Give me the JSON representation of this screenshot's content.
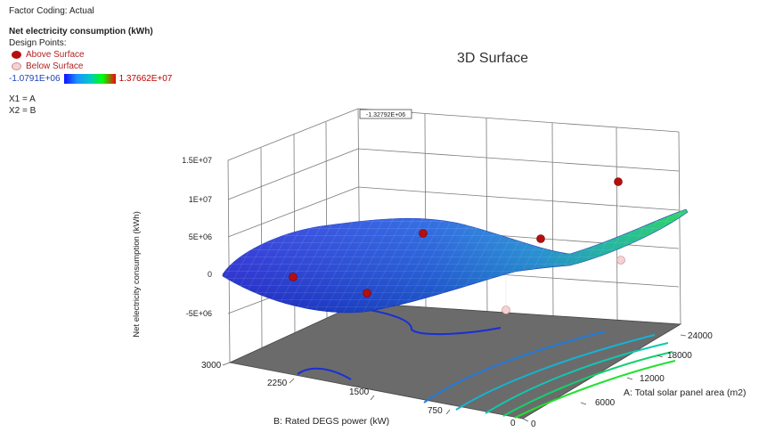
{
  "header": {
    "factor_coding": "Factor Coding: Actual",
    "response_name": "Net electricity consumption (kWh)",
    "design_points_label": "Design Points:",
    "above_surface": "Above Surface",
    "below_surface": "Below Surface",
    "colorbar_min": "-1.0791E+06",
    "colorbar_max": "1.37662E+07",
    "x1_mapping": "X1 = A",
    "x2_mapping": "X2 = B"
  },
  "chart_data": {
    "type": "surface",
    "title": "3D Surface",
    "zlabel": "Net electricity consumption (kWh)",
    "xlabel": "A: Total solar panel area (m2)",
    "ylabel": "B: Rated DEGS power (kW)",
    "z_ticks": [
      "1.5E+07",
      "1E+07",
      "5E+06",
      "0",
      "-5E+06"
    ],
    "x_ticks": [
      "0",
      "6000",
      "12000",
      "18000",
      "24000"
    ],
    "y_ticks": [
      "3000",
      "2250",
      "1500",
      "750",
      "0"
    ],
    "hover_label": "-1.32792E+06",
    "colors": {
      "surface_low": "#1a2fd6",
      "surface_mid": "#1e7bdc",
      "surface_high": "#00c060",
      "floor": "#6b6b6b",
      "above": "#b40f0f",
      "below": "#f4d2d4"
    },
    "design_points": [
      {
        "state": "above"
      },
      {
        "state": "above"
      },
      {
        "state": "above"
      },
      {
        "state": "above"
      },
      {
        "state": "above"
      },
      {
        "state": "below"
      },
      {
        "state": "below"
      }
    ]
  }
}
